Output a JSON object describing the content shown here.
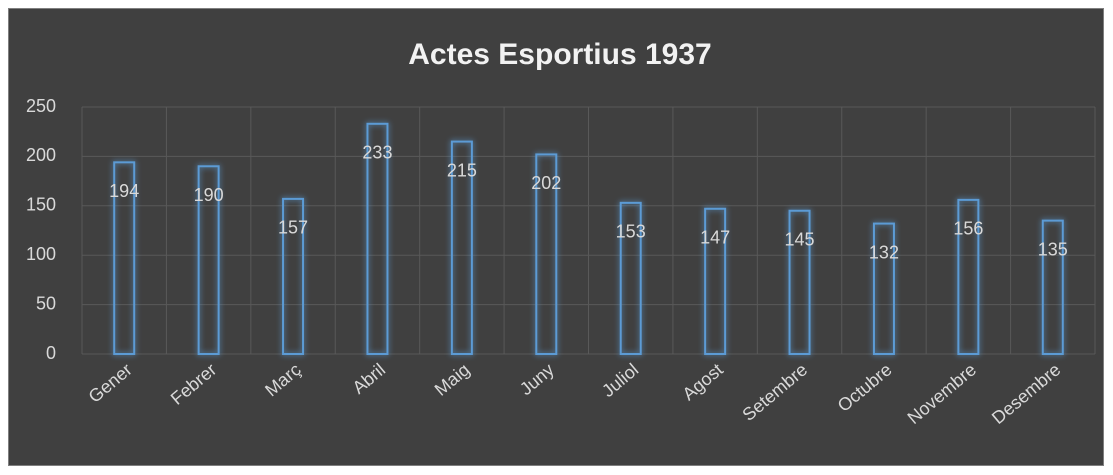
{
  "chart_data": {
    "type": "bar",
    "title": "Actes Esportius 1937",
    "categories": [
      "Gener",
      "Febrer",
      "Març",
      "Abril",
      "Maig",
      "Juny",
      "Juliol",
      "Agost",
      "Setembre",
      "Octubre",
      "Novembre",
      "Desembre"
    ],
    "values": [
      194,
      190,
      157,
      233,
      215,
      202,
      153,
      147,
      145,
      132,
      156,
      135
    ],
    "color": "#5b9bd5",
    "ylim": [
      0,
      250
    ],
    "yticks": [
      0,
      50,
      100,
      150,
      200,
      250
    ],
    "grid": true
  }
}
